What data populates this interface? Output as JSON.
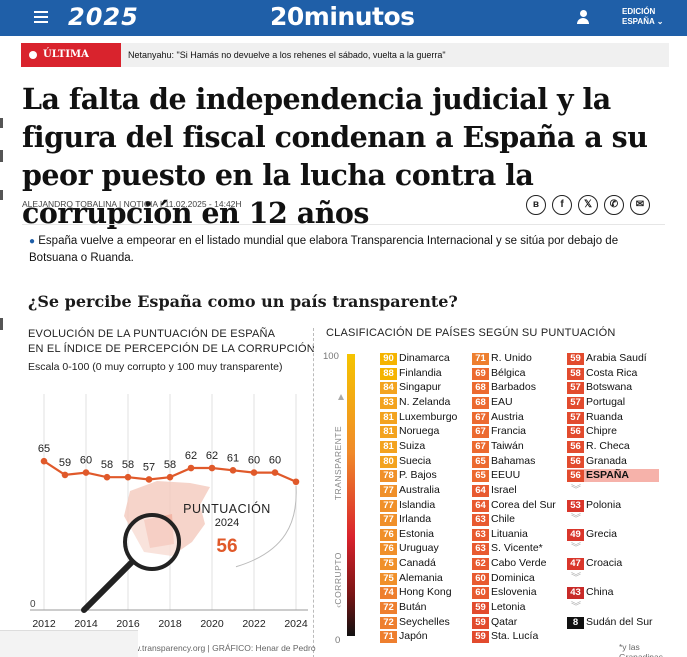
{
  "header": {
    "year_logo": "2025",
    "brand": "20minutos",
    "edition_line1": "EDICIÓN",
    "edition_line2": "ESPAÑA",
    "bg_color": "#1f5fa8"
  },
  "breaking": {
    "tag": "ÚLTIMA HORA",
    "headline": "Netanyahu: \"Si Hamás no devuelve a los rehenes el sábado, vuelta a la guerra\"",
    "tag_color": "#d9232d"
  },
  "article": {
    "title": "La falta de independencia judicial y la figura del fiscal condenan a España a su peor puesto en la lucha contra la corrupción en 12 años",
    "byline": "ALEJANDRO TOBALINA  |  NOTICIA  I  11.02.2025 - 14:42H",
    "summary": "España vuelve a empeorar en el listado mundial que elabora Transparencia Internacional y se sitúa por debajo de Botsuana o Ruanda.",
    "share_icons": [
      "bluesky-icon",
      "facebook-icon",
      "x-icon",
      "whatsapp-icon",
      "email-icon"
    ]
  },
  "infographic": {
    "title": "¿Se percibe España como un país transparente?",
    "left_subtitle_line1": "EVOLUCIÓN DE LA PUNTUACIÓN DE ESPAÑA",
    "left_subtitle_line2": "EN EL ÍNDICE DE PERCEPCIÓN DE LA CORRUPCIÓN",
    "scale_note": "Escala 0-100 (0 muy corrupto y 100 muy transparente)",
    "right_subtitle": "CLASIFICACIÓN DE PAÍSES SEGÚN SU PUNTUACIÓN",
    "score_label_line1": "PUNTUACIÓN",
    "score_label_line2": "2024",
    "score_value": "56",
    "gauge_top": "100",
    "gauge_bottom": "0",
    "gauge_label_top": "TRANSPARENTE",
    "gauge_label_bottom": "CORRUPTO",
    "credit": "w.transparency.org  |  GRÁFICO: Henar de Pedro",
    "footnote": "*y las Granadinas",
    "colors": {
      "line": "#e0592a",
      "accent": "#e0592a",
      "high": "#f5c400",
      "low": "#111111",
      "highlight": "#f6b2aa"
    }
  },
  "chart_data": [
    {
      "type": "line",
      "title": "EVOLUCIÓN DE LA PUNTUACIÓN DE ESPAÑA EN EL ÍNDICE DE PERCEPCIÓN DE LA CORRUPCIÓN",
      "x": [
        2012,
        2013,
        2014,
        2015,
        2016,
        2017,
        2018,
        2019,
        2020,
        2021,
        2022,
        2023,
        2024
      ],
      "x_ticks": [
        2012,
        2014,
        2016,
        2018,
        2020,
        2022,
        2024
      ],
      "series": [
        {
          "values": [
            65,
            59,
            60,
            58,
            58,
            57,
            58,
            62,
            62,
            61,
            60,
            60,
            56
          ]
        }
      ],
      "labels": [
        "65",
        "59",
        "60",
        "58",
        "58",
        "57",
        "58",
        "62",
        "62",
        "61",
        "60",
        "60",
        "56"
      ],
      "ylim": [
        0,
        100
      ],
      "y_ticks": [
        "0"
      ],
      "grid": true
    },
    {
      "type": "table",
      "title": "CLASIFICACIÓN DE PAÍSES SEGÚN SU PUNTUACIÓN",
      "columns": [
        [
          {
            "score": "90",
            "country": "Dinamarca"
          },
          {
            "score": "88",
            "country": "Finlandia"
          },
          {
            "score": "84",
            "country": "Singapur"
          },
          {
            "score": "83",
            "country": "N. Zelanda"
          },
          {
            "score": "81",
            "country": "Luxemburgo"
          },
          {
            "score": "81",
            "country": "Noruega"
          },
          {
            "score": "81",
            "country": "Suiza"
          },
          {
            "score": "80",
            "country": "Suecia"
          },
          {
            "score": "78",
            "country": "P. Bajos"
          },
          {
            "score": "77",
            "country": "Australia"
          },
          {
            "score": "77",
            "country": "Islandia"
          },
          {
            "score": "77",
            "country": "Irlanda"
          },
          {
            "score": "76",
            "country": "Estonia"
          },
          {
            "score": "76",
            "country": "Uruguay"
          },
          {
            "score": "75",
            "country": "Canadá"
          },
          {
            "score": "75",
            "country": "Alemania"
          },
          {
            "score": "74",
            "country": "Hong Kong"
          },
          {
            "score": "72",
            "country": "Bután"
          },
          {
            "score": "72",
            "country": "Seychelles"
          },
          {
            "score": "71",
            "country": "Japón"
          }
        ],
        [
          {
            "score": "71",
            "country": "R. Unido"
          },
          {
            "score": "69",
            "country": "Bélgica"
          },
          {
            "score": "68",
            "country": "Barbados"
          },
          {
            "score": "68",
            "country": "EAU"
          },
          {
            "score": "67",
            "country": "Austria"
          },
          {
            "score": "67",
            "country": "Francia"
          },
          {
            "score": "67",
            "country": "Taiwán"
          },
          {
            "score": "65",
            "country": "Bahamas"
          },
          {
            "score": "65",
            "country": "EEUU"
          },
          {
            "score": "64",
            "country": "Israel"
          },
          {
            "score": "64",
            "country": "Corea del Sur"
          },
          {
            "score": "63",
            "country": "Chile"
          },
          {
            "score": "63",
            "country": "Lituania"
          },
          {
            "score": "63",
            "country": "S. Vicente*"
          },
          {
            "score": "62",
            "country": "Cabo Verde"
          },
          {
            "score": "60",
            "country": "Dominica"
          },
          {
            "score": "60",
            "country": "Eslovenia"
          },
          {
            "score": "59",
            "country": "Letonia"
          },
          {
            "score": "59",
            "country": "Qatar"
          },
          {
            "score": "59",
            "country": "Sta. Lucía"
          }
        ],
        [
          {
            "score": "59",
            "country": "Arabia Saudí"
          },
          {
            "score": "58",
            "country": "Costa Rica"
          },
          {
            "score": "57",
            "country": "Botswana"
          },
          {
            "score": "57",
            "country": "Portugal"
          },
          {
            "score": "57",
            "country": "Ruanda"
          },
          {
            "score": "56",
            "country": "Chipre"
          },
          {
            "score": "56",
            "country": "R. Checa"
          },
          {
            "score": "56",
            "country": "Granada"
          },
          {
            "score": "56",
            "country": "ESPAÑA",
            "highlight": true
          },
          {
            "score": "",
            "country": "",
            "gap": true
          },
          {
            "score": "53",
            "country": "Polonia"
          },
          {
            "score": "",
            "country": "",
            "gap": true
          },
          {
            "score": "49",
            "country": "Grecia"
          },
          {
            "score": "",
            "country": "",
            "gap": true
          },
          {
            "score": "47",
            "country": "Croacia"
          },
          {
            "score": "",
            "country": "",
            "gap": true
          },
          {
            "score": "43",
            "country": "China"
          },
          {
            "score": "",
            "country": "",
            "gap": true
          },
          {
            "score": "8",
            "country": "Sudán del Sur"
          },
          {
            "score": "",
            "country": "",
            "blank": true
          }
        ]
      ]
    }
  ]
}
